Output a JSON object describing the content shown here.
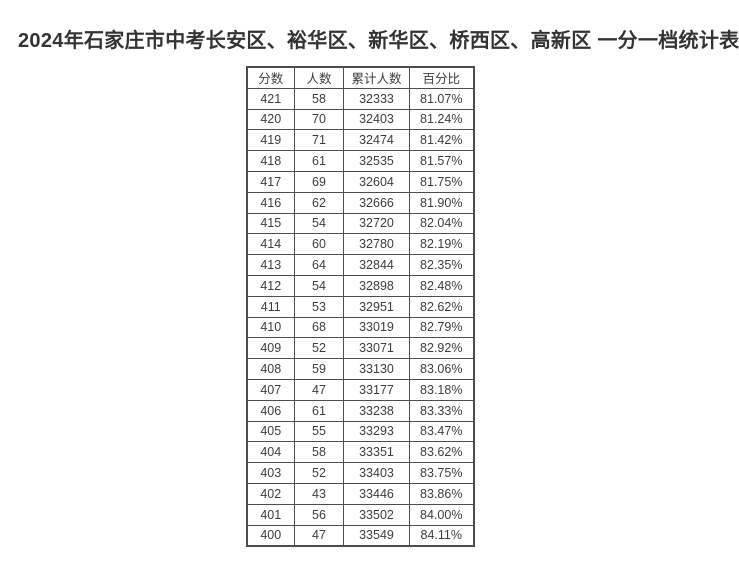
{
  "page": {
    "title": "2024年石家庄市中考长安区、裕华区、新华区、桥西区、高新区 一分一档统计表"
  },
  "colors": {
    "page_background": "#ffffff",
    "text": "#3d3d3d",
    "title_text": "#333333",
    "border": "#4d4d4d",
    "cell_background": "#ffffff"
  },
  "chart_data": {
    "type": "table",
    "title": "2024年石家庄市中考长安区、裕华区、新华区、桥西区、高新区 一分一档统计表",
    "columns": [
      "分数",
      "人数",
      "累计人数",
      "百分比"
    ],
    "rows": [
      [
        421,
        58,
        32333,
        "81.07%"
      ],
      [
        420,
        70,
        32403,
        "81.24%"
      ],
      [
        419,
        71,
        32474,
        "81.42%"
      ],
      [
        418,
        61,
        32535,
        "81.57%"
      ],
      [
        417,
        69,
        32604,
        "81.75%"
      ],
      [
        416,
        62,
        32666,
        "81.90%"
      ],
      [
        415,
        54,
        32720,
        "82.04%"
      ],
      [
        414,
        60,
        32780,
        "82.19%"
      ],
      [
        413,
        64,
        32844,
        "82.35%"
      ],
      [
        412,
        54,
        32898,
        "82.48%"
      ],
      [
        411,
        53,
        32951,
        "82.62%"
      ],
      [
        410,
        68,
        33019,
        "82.79%"
      ],
      [
        409,
        52,
        33071,
        "82.92%"
      ],
      [
        408,
        59,
        33130,
        "83.06%"
      ],
      [
        407,
        47,
        33177,
        "83.18%"
      ],
      [
        406,
        61,
        33238,
        "83.33%"
      ],
      [
        405,
        55,
        33293,
        "83.47%"
      ],
      [
        404,
        58,
        33351,
        "83.62%"
      ],
      [
        403,
        52,
        33403,
        "83.75%"
      ],
      [
        402,
        43,
        33446,
        "83.86%"
      ],
      [
        401,
        56,
        33502,
        "84.00%"
      ],
      [
        400,
        47,
        33549,
        "84.11%"
      ]
    ]
  }
}
